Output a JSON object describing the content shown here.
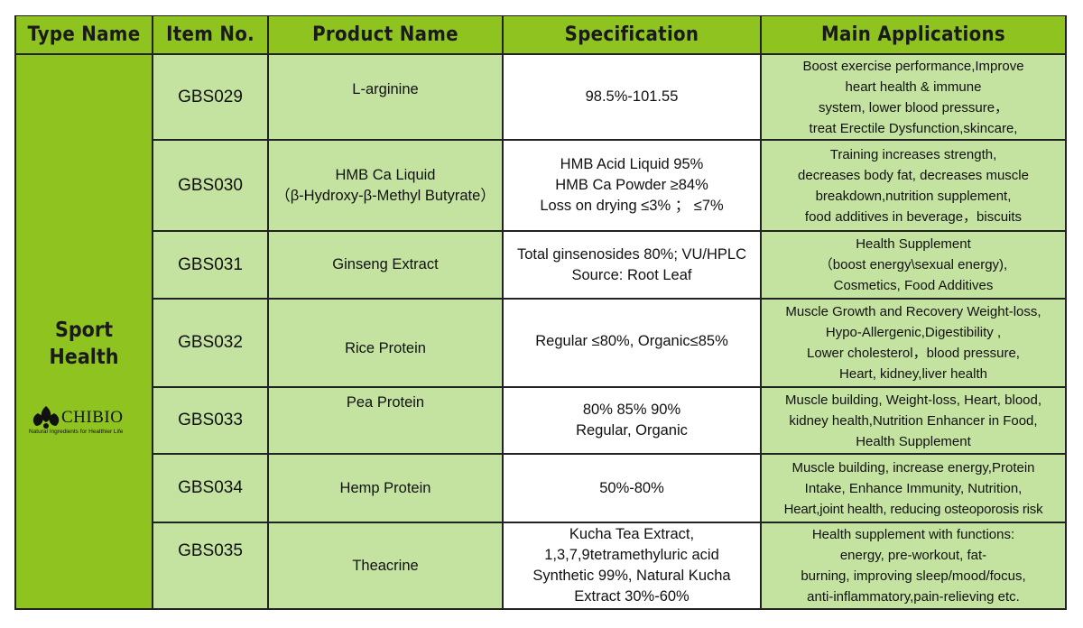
{
  "headers": {
    "type_name": "Type Name",
    "item_no": "Item No.",
    "product_name": "Product Name",
    "specification": "Specification",
    "main_applications": "Main Applications"
  },
  "category": {
    "line1": "Sport",
    "line2": "Health"
  },
  "logo": {
    "name": "CHIBIO",
    "tagline": "Natural Ingredients for Healthier Life"
  },
  "rows": [
    {
      "item": "GBS029",
      "product": [
        "L-arginine"
      ],
      "spec": [
        "98.5%-101.55"
      ],
      "apps": [
        "Boost exercise performance,Improve",
        "heart health & immune",
        "system, lower blood pressure，",
        "treat Erectile Dysfunction,skincare,"
      ]
    },
    {
      "item": "GBS030",
      "product": [
        "HMB Ca Liquid",
        "（β-Hydroxy-β-Methyl Butyrate）"
      ],
      "spec": [
        "HMB Acid Liquid 95%",
        "HMB Ca Powder ≥84%",
        "Loss on drying ≤3% ； ≤7%"
      ],
      "apps": [
        "Training increases strength,",
        "decreases body fat, decreases muscle",
        "breakdown,nutrition supplement,",
        "food additives in beverage，biscuits"
      ]
    },
    {
      "item": "GBS031",
      "product": [
        "Ginseng Extract"
      ],
      "spec": [
        "Total ginsenosides 80%; VU/HPLC",
        "Source: Root Leaf"
      ],
      "apps": [
        "Health Supplement",
        "（boost energy\\sexual energy),",
        "Cosmetics, Food Additives"
      ]
    },
    {
      "item": "GBS032",
      "product": [
        "Rice Protein"
      ],
      "spec": [
        "Regular ≤80%, Organic≤85%"
      ],
      "apps": [
        "Muscle Growth and Recovery Weight-loss,",
        "Hypo-Allergenic,Digestibility ,",
        "Lower cholesterol，blood pressure,",
        "Heart, kidney,liver health"
      ]
    },
    {
      "item": "GBS033",
      "product": [
        "Pea Protein"
      ],
      "spec": [
        "80% 85% 90%",
        "Regular, Organic"
      ],
      "apps": [
        "Muscle building, Weight-loss, Heart, blood,",
        "kidney health,Nutrition Enhancer in Food,",
        "Health Supplement"
      ]
    },
    {
      "item": "GBS034",
      "product": [
        "Hemp Protein"
      ],
      "spec": [
        "50%-80%"
      ],
      "apps": [
        "Muscle building, increase energy,Protein",
        "Intake, Enhance Immunity, Nutrition,",
        "Heart,joint health, reducing osteoporosis risk"
      ]
    },
    {
      "item": "GBS035",
      "product": [
        "Theacrine"
      ],
      "spec": [
        "Kucha Tea Extract,",
        "1,3,7,9tetramethyluric acid",
        "Synthetic 99%, Natural Kucha",
        "Extract 30%-60%"
      ],
      "apps": [
        "Health supplement with functions:",
        "energy, pre-workout, fat-",
        "burning, improving sleep/mood/focus,",
        "anti-inflammatory,pain-relieving etc."
      ]
    }
  ],
  "colors": {
    "header_green": "#8fc31f",
    "light_green": "#c5e3a0",
    "white": "#ffffff",
    "border": "#222222"
  }
}
